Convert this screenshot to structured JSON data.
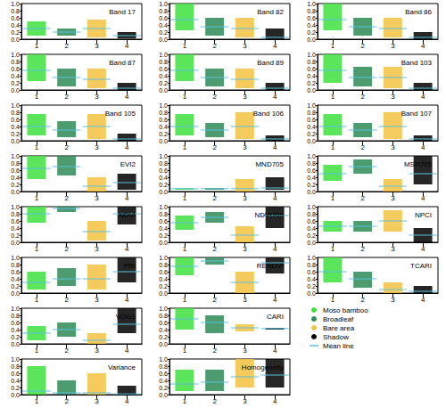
{
  "chart_data": [
    {
      "type": "strip",
      "title": "Band 17",
      "categories": [
        "1",
        "2",
        "3",
        "4"
      ],
      "low": [
        0.1,
        0.1,
        0.05,
        0.02
      ],
      "high": [
        0.5,
        0.3,
        0.55,
        0.2
      ],
      "values": [
        0.3,
        0.2,
        0.3,
        0.1
      ],
      "colors": [
        "#3ee03e",
        "#2e8b57",
        "#f5c242",
        "#000000"
      ],
      "ylim": [
        0,
        1
      ],
      "yticks": [
        {
          "value": 0,
          "label": "0.0"
        },
        0.2,
        0.4,
        0.6,
        0.8,
        {
          "value": 1,
          "label": "1.0"
        }
      ]
    },
    {
      "type": "strip",
      "title": "Band 82",
      "categories": [
        "1",
        "2",
        "3",
        "4"
      ],
      "low": [
        0.25,
        0.1,
        0.05,
        0.0
      ],
      "high": [
        1.0,
        0.6,
        0.6,
        0.3
      ],
      "values": [
        0.55,
        0.35,
        0.3,
        0.05
      ],
      "colors": [
        "#3ee03e",
        "#2e8b57",
        "#f5c242",
        "#000000"
      ],
      "ylim": [
        0,
        1
      ],
      "yticks": [
        {
          "value": 0,
          "label": "0.0"
        },
        0.2,
        0.4,
        0.6,
        0.8,
        {
          "value": 1,
          "label": "1.0"
        }
      ]
    },
    {
      "type": "strip",
      "title": "Band 86",
      "categories": [
        "1",
        "2",
        "3",
        "4"
      ],
      "low": [
        0.25,
        0.1,
        0.05,
        0.0
      ],
      "high": [
        1.0,
        0.6,
        0.6,
        0.2
      ],
      "values": [
        0.55,
        0.35,
        0.3,
        0.05
      ],
      "colors": [
        "#3ee03e",
        "#2e8b57",
        "#f5c242",
        "#000000"
      ],
      "ylim": [
        0,
        1
      ],
      "yticks": [
        {
          "value": 0,
          "label": "0.0"
        },
        0.2,
        0.4,
        0.6,
        0.8,
        {
          "value": 1,
          "label": "1.0"
        }
      ]
    },
    {
      "type": "strip",
      "title": "Band 87",
      "categories": [
        "1",
        "2",
        "3",
        "4"
      ],
      "low": [
        0.25,
        0.1,
        0.05,
        0.0
      ],
      "high": [
        1.0,
        0.6,
        0.6,
        0.2
      ],
      "values": [
        0.55,
        0.35,
        0.3,
        0.05
      ],
      "colors": [
        "#3ee03e",
        "#2e8b57",
        "#f5c242",
        "#000000"
      ],
      "ylim": [
        0,
        1
      ],
      "yticks": [
        {
          "value": 0,
          "label": "0.0"
        },
        0.2,
        0.4,
        0.6,
        0.8,
        {
          "value": 1,
          "label": "1.0"
        }
      ]
    },
    {
      "type": "strip",
      "title": "Band 89",
      "categories": [
        "1",
        "2",
        "3",
        "4"
      ],
      "low": [
        0.25,
        0.1,
        0.05,
        0.0
      ],
      "high": [
        1.0,
        0.6,
        0.6,
        0.2
      ],
      "values": [
        0.55,
        0.35,
        0.3,
        0.05
      ],
      "colors": [
        "#3ee03e",
        "#2e8b57",
        "#f5c242",
        "#000000"
      ],
      "ylim": [
        0,
        1
      ],
      "yticks": [
        {
          "value": 0,
          "label": "0.0"
        },
        0.2,
        0.4,
        0.6,
        0.8,
        {
          "value": 1,
          "label": "1.0"
        }
      ]
    },
    {
      "type": "strip",
      "title": "Band 103",
      "categories": [
        "1",
        "2",
        "3",
        "4"
      ],
      "low": [
        0.2,
        0.1,
        0.05,
        0.0
      ],
      "high": [
        1.0,
        0.65,
        0.65,
        0.2
      ],
      "values": [
        0.55,
        0.35,
        0.35,
        0.05
      ],
      "colors": [
        "#3ee03e",
        "#2e8b57",
        "#f5c242",
        "#000000"
      ],
      "ylim": [
        0,
        1
      ],
      "yticks": [
        {
          "value": 0,
          "label": "0.0"
        },
        0.2,
        0.4,
        0.6,
        0.8,
        {
          "value": 1,
          "label": "1.0"
        }
      ]
    },
    {
      "type": "strip",
      "title": "Band 105",
      "categories": [
        "1",
        "2",
        "3",
        "4"
      ],
      "low": [
        0.15,
        0.1,
        0.05,
        0.0
      ],
      "high": [
        0.75,
        0.55,
        0.75,
        0.2
      ],
      "values": [
        0.4,
        0.3,
        0.4,
        0.05
      ],
      "colors": [
        "#3ee03e",
        "#2e8b57",
        "#f5c242",
        "#000000"
      ],
      "ylim": [
        0,
        1
      ],
      "yticks": [
        {
          "value": 0,
          "label": "0.0"
        },
        0.2,
        0.4,
        0.6,
        0.8,
        {
          "value": 1,
          "label": "1.0"
        }
      ]
    },
    {
      "type": "strip",
      "title": "Band 106",
      "categories": [
        "1",
        "2",
        "3",
        "4"
      ],
      "low": [
        0.15,
        0.1,
        0.05,
        0.0
      ],
      "high": [
        0.75,
        0.5,
        0.8,
        0.15
      ],
      "values": [
        0.4,
        0.3,
        0.4,
        0.05
      ],
      "colors": [
        "#3ee03e",
        "#2e8b57",
        "#f5c242",
        "#000000"
      ],
      "ylim": [
        0,
        1
      ],
      "yticks": [
        {
          "value": 0,
          "label": "0.0"
        },
        0.2,
        0.4,
        0.6,
        0.8,
        {
          "value": 1,
          "label": "1.0"
        }
      ]
    },
    {
      "type": "strip",
      "title": "Band 107",
      "categories": [
        "1",
        "2",
        "3",
        "4"
      ],
      "low": [
        0.15,
        0.1,
        0.05,
        0.0
      ],
      "high": [
        0.75,
        0.5,
        0.8,
        0.15
      ],
      "values": [
        0.4,
        0.3,
        0.4,
        0.05
      ],
      "colors": [
        "#3ee03e",
        "#2e8b57",
        "#f5c242",
        "#000000"
      ],
      "ylim": [
        0,
        1
      ],
      "yticks": [
        {
          "value": 0,
          "label": "0.0"
        },
        0.2,
        0.4,
        0.6,
        0.8,
        {
          "value": 1,
          "label": "1.0"
        }
      ]
    },
    {
      "type": "strip",
      "title": "EVI2",
      "categories": [
        "1",
        "2",
        "3",
        "4"
      ],
      "low": [
        0.35,
        0.45,
        0.0,
        0.05
      ],
      "high": [
        1.0,
        1.0,
        0.4,
        0.5
      ],
      "values": [
        0.65,
        0.7,
        0.15,
        0.25
      ],
      "colors": [
        "#3ee03e",
        "#2e8b57",
        "#f5c242",
        "#000000"
      ],
      "ylim": [
        0,
        1
      ],
      "yticks": [
        {
          "value": 0,
          "label": "0.0"
        },
        0.2,
        0.4,
        0.6,
        0.8,
        {
          "value": 1,
          "label": "1.0"
        }
      ]
    },
    {
      "type": "strip",
      "title": "MND705",
      "categories": [
        "1",
        "2",
        "3",
        "4"
      ],
      "low": [
        0.05,
        0.05,
        0.0,
        0.05
      ],
      "high": [
        0.1,
        0.1,
        0.35,
        0.4
      ],
      "values": [
        0.08,
        0.08,
        0.08,
        0.1
      ],
      "colors": [
        "#3ee03e",
        "#2e8b57",
        "#f5c242",
        "#000000"
      ],
      "ylim": [
        0,
        1
      ],
      "yticks": [
        {
          "value": 0,
          "label": "0.0"
        },
        0.2,
        0.4,
        0.6,
        0.8,
        {
          "value": 1,
          "label": "1.0"
        }
      ]
    },
    {
      "type": "strip",
      "title": "MSR705",
      "categories": [
        "1",
        "2",
        "3",
        "4"
      ],
      "low": [
        0.3,
        0.5,
        0.0,
        0.2
      ],
      "high": [
        0.75,
        0.9,
        0.35,
        1.0
      ],
      "values": [
        0.5,
        0.7,
        0.15,
        0.5
      ],
      "colors": [
        "#3ee03e",
        "#2e8b57",
        "#f5c242",
        "#000000"
      ],
      "ylim": [
        0,
        1
      ],
      "yticks": [
        {
          "value": 0,
          "label": "0.0"
        },
        0.2,
        0.4,
        0.6,
        0.8,
        {
          "value": 1,
          "label": "1.0"
        }
      ]
    },
    {
      "type": "strip",
      "title": "NDVI",
      "categories": [
        "1",
        "2",
        "3",
        "4"
      ],
      "low": [
        0.55,
        0.85,
        0.05,
        0.5
      ],
      "high": [
        1.0,
        1.0,
        0.6,
        1.0
      ],
      "values": [
        0.8,
        0.95,
        0.3,
        0.8
      ],
      "colors": [
        "#3ee03e",
        "#2e8b57",
        "#f5c242",
        "#000000"
      ],
      "ylim": [
        0,
        1
      ],
      "yticks": [
        {
          "value": 0,
          "label": "0.0"
        },
        0.2,
        0.4,
        0.6,
        0.8,
        {
          "value": 1,
          "label": "1.0"
        }
      ]
    },
    {
      "type": "strip",
      "title": "NDVI705",
      "categories": [
        "1",
        "2",
        "3",
        "4"
      ],
      "low": [
        0.35,
        0.55,
        0.0,
        0.4
      ],
      "high": [
        0.75,
        0.85,
        0.45,
        1.0
      ],
      "values": [
        0.55,
        0.7,
        0.2,
        0.75
      ],
      "colors": [
        "#3ee03e",
        "#2e8b57",
        "#f5c242",
        "#000000"
      ],
      "ylim": [
        0,
        1
      ],
      "yticks": [
        {
          "value": 0,
          "label": "0.0"
        },
        0.2,
        0.4,
        0.6,
        0.8,
        {
          "value": 1,
          "label": "1.0"
        }
      ]
    },
    {
      "type": "strip",
      "title": "NPCI",
      "categories": [
        "1",
        "2",
        "3",
        "4"
      ],
      "low": [
        0.3,
        0.3,
        0.3,
        0.0
      ],
      "high": [
        0.6,
        0.6,
        0.9,
        0.4
      ],
      "values": [
        0.45,
        0.45,
        0.6,
        0.2
      ],
      "colors": [
        "#3ee03e",
        "#2e8b57",
        "#f5c242",
        "#000000"
      ],
      "ylim": [
        0,
        1
      ],
      "yticks": [
        {
          "value": 0,
          "label": "0.0"
        },
        0.2,
        0.4,
        0.6,
        0.8,
        {
          "value": 1,
          "label": "1.0"
        }
      ]
    },
    {
      "type": "strip",
      "title": "PRI",
      "categories": [
        "1",
        "2",
        "3",
        "4"
      ],
      "low": [
        0.1,
        0.2,
        0.1,
        0.3
      ],
      "high": [
        0.6,
        0.7,
        0.8,
        1.0
      ],
      "values": [
        0.3,
        0.4,
        0.4,
        0.6
      ],
      "colors": [
        "#3ee03e",
        "#2e8b57",
        "#f5c242",
        "#000000"
      ],
      "ylim": [
        0,
        1
      ],
      "yticks": [
        {
          "value": 0,
          "label": "0.0"
        },
        0.2,
        0.4,
        0.6,
        0.8,
        {
          "value": 1,
          "label": "1.0"
        }
      ]
    },
    {
      "type": "strip",
      "title": "RENDVI",
      "categories": [
        "1",
        "2",
        "3",
        "4"
      ],
      "low": [
        0.5,
        0.8,
        0.0,
        0.55
      ],
      "high": [
        1.0,
        1.0,
        0.6,
        1.0
      ],
      "values": [
        0.75,
        0.9,
        0.3,
        0.85
      ],
      "colors": [
        "#3ee03e",
        "#2e8b57",
        "#f5c242",
        "#000000"
      ],
      "ylim": [
        0,
        1
      ],
      "yticks": [
        {
          "value": 0,
          "label": "0.0"
        },
        0.2,
        0.4,
        0.6,
        0.8,
        {
          "value": 1,
          "label": "1.0"
        }
      ]
    },
    {
      "type": "strip",
      "title": "TCARI",
      "categories": [
        "1",
        "2",
        "3",
        "4"
      ],
      "low": [
        0.3,
        0.15,
        0.0,
        0.0
      ],
      "high": [
        1.0,
        0.6,
        0.3,
        0.2
      ],
      "values": [
        0.6,
        0.4,
        0.1,
        0.05
      ],
      "colors": [
        "#3ee03e",
        "#2e8b57",
        "#f5c242",
        "#000000"
      ],
      "ylim": [
        0,
        1
      ],
      "yticks": [
        {
          "value": 0,
          "label": "0.0"
        },
        0.2,
        0.4,
        0.6,
        0.8,
        {
          "value": 1,
          "label": "1.0"
        }
      ]
    },
    {
      "type": "strip",
      "title": "VOG1",
      "categories": [
        "1",
        "2",
        "3",
        "4"
      ],
      "low": [
        0.1,
        0.2,
        0.0,
        0.3
      ],
      "high": [
        0.5,
        0.6,
        0.3,
        1.0
      ],
      "values": [
        0.3,
        0.4,
        0.1,
        0.55
      ],
      "colors": [
        "#3ee03e",
        "#2e8b57",
        "#f5c242",
        "#000000"
      ],
      "ylim": [
        0,
        1
      ],
      "yticks": [
        {
          "value": 0,
          "label": "0.0"
        },
        0.2,
        0.4,
        0.6,
        0.8,
        {
          "value": 1,
          "label": "1.0"
        }
      ]
    },
    {
      "type": "strip",
      "title": "CARI",
      "categories": [
        "1",
        "2",
        "3",
        "4"
      ],
      "low": [
        0.4,
        0.3,
        0.35,
        0.4
      ],
      "high": [
        1.0,
        0.8,
        0.55,
        0.45
      ],
      "values": [
        0.7,
        0.6,
        0.45,
        0.43
      ],
      "colors": [
        "#3ee03e",
        "#2e8b57",
        "#f5c242",
        "#000000"
      ],
      "ylim": [
        0,
        1
      ],
      "yticks": [
        {
          "value": 0,
          "label": "0.0"
        },
        0.2,
        0.4,
        0.6,
        0.8,
        {
          "value": 1,
          "label": "1.0"
        }
      ]
    },
    {
      "type": "strip",
      "title": "Variance",
      "categories": [
        "1",
        "2",
        "3",
        "4"
      ],
      "low": [
        0.0,
        0.0,
        0.0,
        0.0
      ],
      "high": [
        0.8,
        0.4,
        0.6,
        0.25
      ],
      "values": [
        0.1,
        0.05,
        0.05,
        0.02
      ],
      "colors": [
        "#3ee03e",
        "#2e8b57",
        "#f5c242",
        "#000000"
      ],
      "ylim": [
        0,
        1
      ],
      "yticks": [
        {
          "value": 0,
          "label": "0.0"
        },
        0.2,
        0.4,
        0.6,
        0.8,
        {
          "value": 1,
          "label": "1.0"
        }
      ]
    },
    {
      "type": "strip",
      "title": "Homogeneity",
      "categories": [
        "1",
        "2",
        "3",
        "4"
      ],
      "low": [
        0.1,
        0.1,
        0.2,
        0.2
      ],
      "high": [
        0.7,
        0.7,
        1.0,
        1.0
      ],
      "values": [
        0.3,
        0.35,
        0.5,
        0.55
      ],
      "colors": [
        "#3ee03e",
        "#2e8b57",
        "#f5c242",
        "#000000"
      ],
      "ylim": [
        0,
        1
      ],
      "yticks": [
        {
          "value": 0,
          "label": "0.0"
        },
        0.2,
        0.4,
        0.6,
        0.8,
        {
          "value": 1,
          "label": "1.0"
        }
      ]
    }
  ],
  "key": [
    {
      "name": "Moso bamboo",
      "color": "#3ee03e",
      "marker": "circle"
    },
    {
      "name": "Broadleaf",
      "color": "#2e8b57",
      "marker": "circle"
    },
    {
      "name": "Bare area",
      "color": "#f5c242",
      "marker": "circle"
    },
    {
      "name": "Shadow",
      "color": "#000000",
      "marker": "circle"
    },
    {
      "name": "Mean line",
      "color": "#5bc0de",
      "marker": "line"
    }
  ]
}
